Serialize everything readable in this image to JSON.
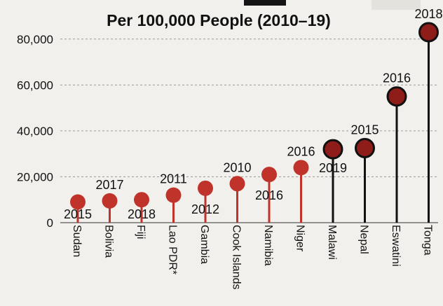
{
  "chart_data": {
    "type": "scatter",
    "title": "Per 100,000 People (2010–19)",
    "ylim": [
      0,
      90000
    ],
    "yticks": [
      "0",
      "20,000",
      "40,000",
      "60,000",
      "80,000"
    ],
    "ytick_values": [
      0,
      20000,
      40000,
      60000,
      80000
    ],
    "grid": "horizontal dashed",
    "categories": [
      "Sudan",
      "Bolivia",
      "Fiji",
      "Lao PDR*",
      "Gambia",
      "Cook Islands",
      "Namibia",
      "Niger",
      "Malawi",
      "Nepal",
      "Eswatini",
      "Tonga"
    ],
    "values": [
      9000,
      9500,
      10000,
      12000,
      15000,
      17000,
      21000,
      24000,
      32000,
      32500,
      55000,
      83000
    ],
    "years": [
      "2015",
      "2017",
      "2018",
      "2011",
      "2012",
      "2010",
      "2016",
      "2016",
      "2019",
      "2015",
      "2016",
      "2018"
    ],
    "year_positions": [
      "below",
      "above",
      "below",
      "above",
      "below",
      "above",
      "below",
      "above",
      "below",
      "above",
      "above",
      "above"
    ],
    "marker_colors": [
      "#c0332b",
      "#c0332b",
      "#c0332b",
      "#c0332b",
      "#c0332b",
      "#c0332b",
      "#c0332b",
      "#c0332b",
      "#8e1c19",
      "#8e1c19",
      "#8e1c19",
      "#8e1c19"
    ],
    "stem_colors": [
      "#c0332b",
      "#c0332b",
      "#c0332b",
      "#c0332b",
      "#c0332b",
      "#c0332b",
      "#c0332b",
      "#c0332b",
      "#111111",
      "#111111",
      "#111111",
      "#111111"
    ],
    "marker_outline": [
      "none",
      "none",
      "none",
      "none",
      "none",
      "none",
      "none",
      "none",
      "#111111",
      "#111111",
      "#111111",
      "#111111"
    ]
  }
}
